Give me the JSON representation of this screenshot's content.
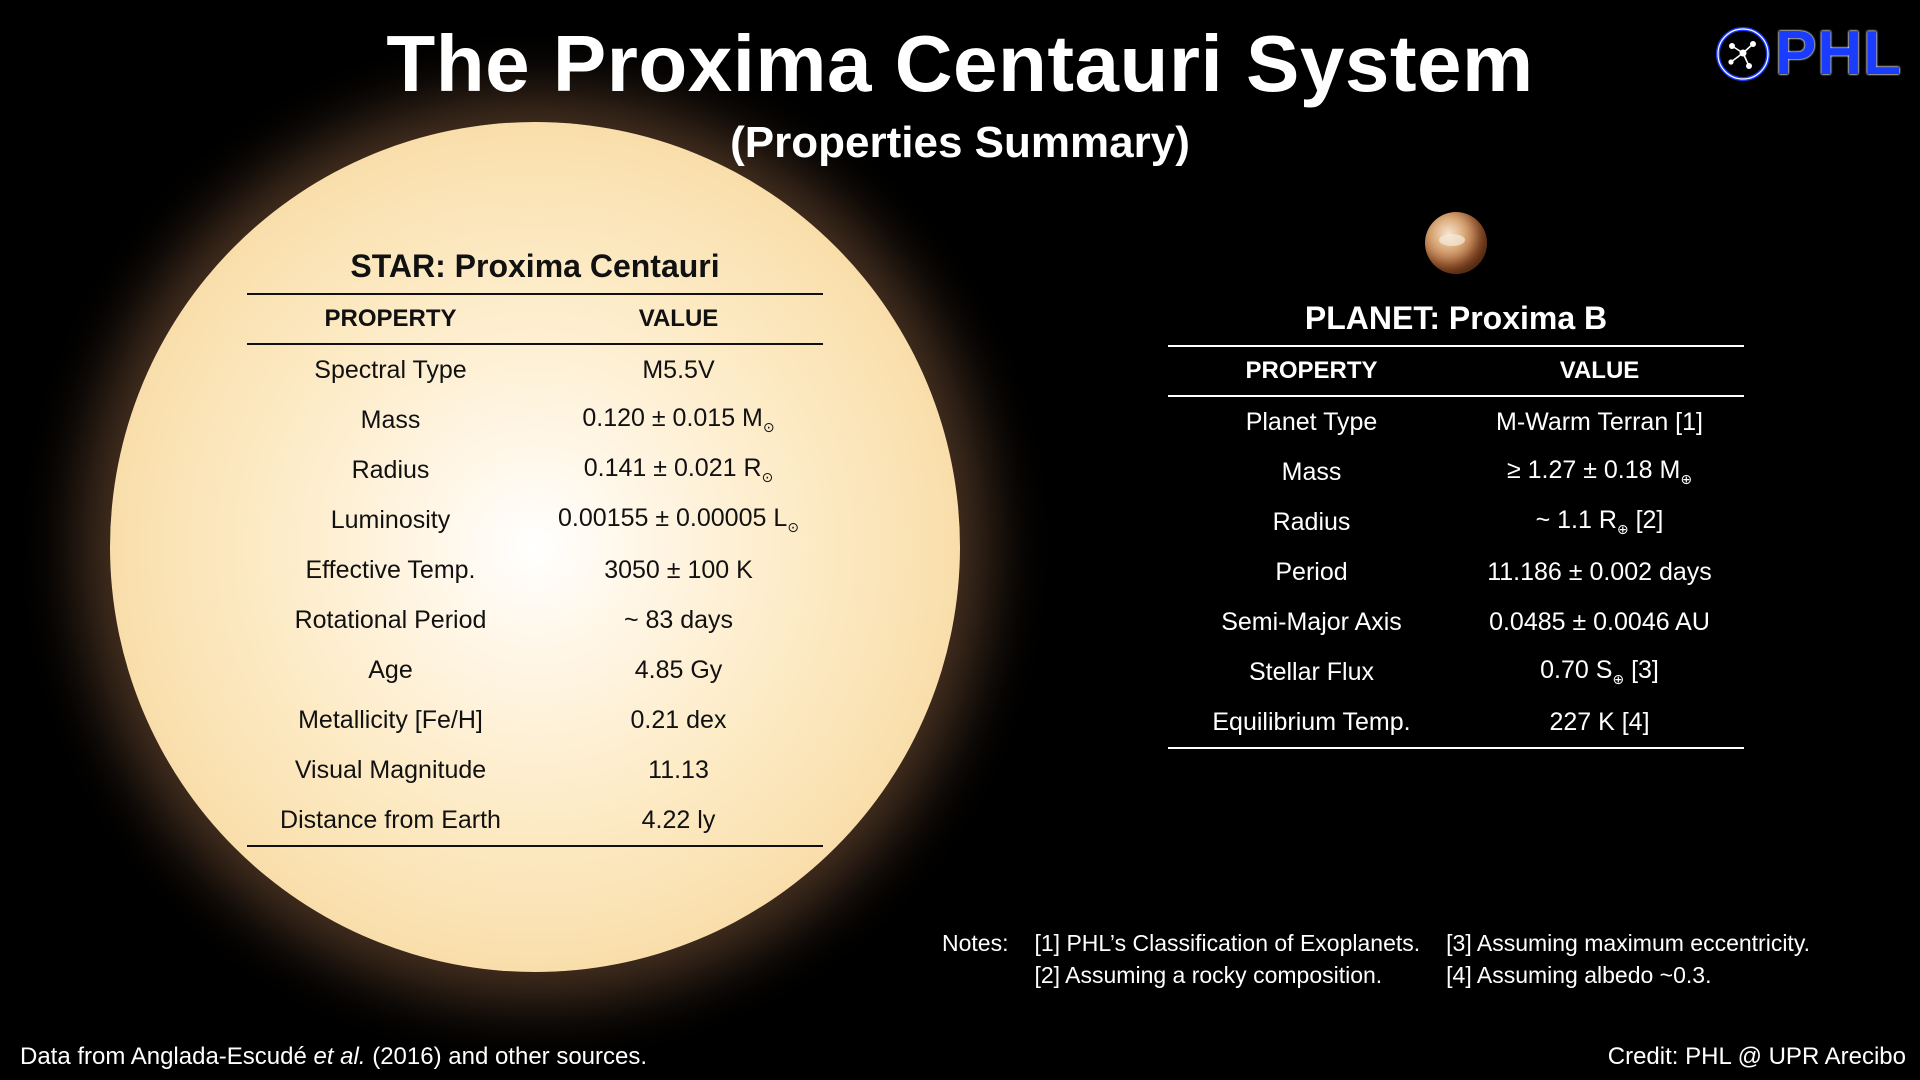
{
  "header": {
    "title": "The Proxima Centauri System",
    "subtitle": "(Properties Summary)",
    "logo_text": "PHL"
  },
  "star": {
    "heading": "STAR: Proxima Centauri",
    "col_property": "PROPERTY",
    "col_value": "VALUE",
    "rows": [
      {
        "property": "Spectral Type",
        "value": "M5.5V"
      },
      {
        "property": "Mass",
        "value": "0.120 ± 0.015 M",
        "sub": "⊙"
      },
      {
        "property": "Radius",
        "value": "0.141 ± 0.021 R",
        "sub": "⊙"
      },
      {
        "property": "Luminosity",
        "value": "0.00155 ± 0.00005 L",
        "sub": "⊙"
      },
      {
        "property": "Effective Temp.",
        "value": "3050 ± 100 K"
      },
      {
        "property": "Rotational Period",
        "value": "~ 83 days"
      },
      {
        "property": "Age",
        "value": "4.85 Gy"
      },
      {
        "property": "Metallicity [Fe/H]",
        "value": "0.21 dex"
      },
      {
        "property": "Visual Magnitude",
        "value": "11.13"
      },
      {
        "property": "Distance from Earth",
        "value": "4.22 ly"
      }
    ]
  },
  "planet": {
    "heading": "PLANET: Proxima B",
    "col_property": "PROPERTY",
    "col_value": "VALUE",
    "rows": [
      {
        "property": "Planet Type",
        "value": "M-Warm Terran [1]"
      },
      {
        "property": "Mass",
        "value": "≥ 1.27 ± 0.18 M",
        "sub": "⊕"
      },
      {
        "property": "Radius",
        "value": "~ 1.1 R",
        "sub": "⊕",
        "after": " [2]"
      },
      {
        "property": "Period",
        "value": "11.186 ± 0.002 days"
      },
      {
        "property": "Semi-Major Axis",
        "value": "0.0485 ± 0.0046 AU"
      },
      {
        "property": "Stellar Flux",
        "value": "0.70 S",
        "sub": "⊕",
        "after": " [3]"
      },
      {
        "property": "Equilibrium Temp.",
        "value": "227 K [4]"
      }
    ]
  },
  "notes": {
    "label": "Notes:",
    "n1": "[1] PHL’s Classification of Exoplanets.",
    "n2": "[2] Assuming a rocky composition.",
    "n3": "[3] Assuming maximum eccentricity.",
    "n4": "[4] Assuming albedo ~0.3."
  },
  "footer": {
    "source_prefix": "Data from Anglada-Escudé ",
    "source_italic": "et al.",
    "source_suffix": " (2016) and other sources.",
    "credit": "Credit: PHL @ UPR Arecibo"
  }
}
